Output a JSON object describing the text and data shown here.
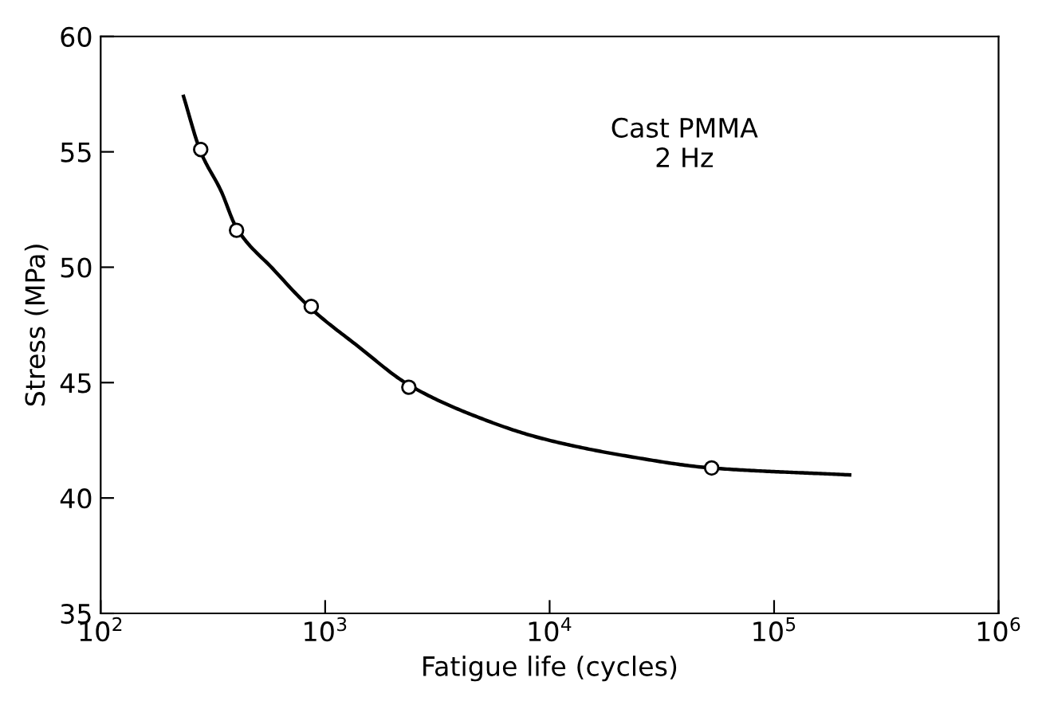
{
  "chart_data": {
    "type": "scatter",
    "xlabel": "Fatigue life (cycles)",
    "ylabel": "Stress (MPa)",
    "annotations": [
      "Cast PMMA\n2 Hz"
    ],
    "log": "x",
    "xlim": [
      100,
      1000000
    ],
    "ylim": [
      35,
      60
    ],
    "xticks": [
      {
        "value": 100,
        "label": "10$^{2}$"
      },
      {
        "value": 1000,
        "label": "10$^{3}$"
      },
      {
        "value": 10000,
        "label": "10$^{4}$"
      },
      {
        "value": 100000,
        "label": "10$^{5}$"
      },
      {
        "value": 1000000,
        "label": "10$^{6}$"
      }
    ],
    "yticks": [
      35,
      40,
      45,
      50,
      55,
      60
    ],
    "grid": false,
    "legend": false,
    "series": [
      {
        "type": "line",
        "color": "#000000",
        "marker": "none",
        "line_style": "solid",
        "x": [
          234,
          279,
          344,
          403,
          589,
          867,
          1390,
          2360,
          4520,
          9080,
          22600,
          52700,
          217000
        ],
        "values": [
          57.4,
          55.0,
          53.3,
          51.7,
          49.9,
          48.2,
          46.6,
          44.9,
          43.6,
          42.6,
          41.8,
          41.3,
          41.0
        ]
      },
      {
        "color": "#000000",
        "marker": "circle",
        "x": [
          279,
          403,
          867,
          2360,
          52700
        ],
        "values": [
          55.1,
          51.6,
          48.3,
          44.8,
          41.3
        ]
      }
    ]
  }
}
